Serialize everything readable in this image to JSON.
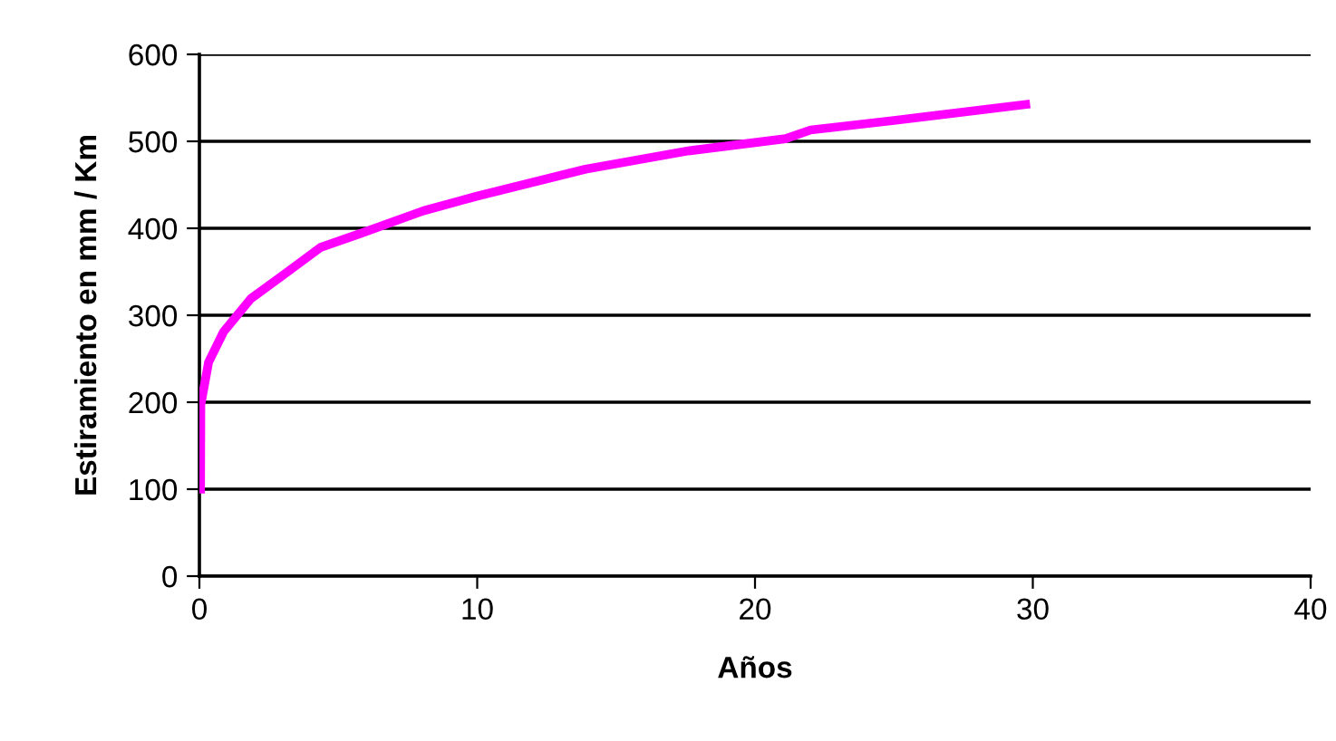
{
  "chart_data": {
    "type": "line",
    "xlabel": "Años",
    "ylabel": "Estiramiento en mm / Km",
    "series": [
      {
        "color": "#ff00ff",
        "x": [
          0.04,
          0.05,
          0.33,
          0.87,
          1.85,
          3.05,
          4.36,
          5.88,
          8.06,
          10.0,
          13.9,
          17.6,
          21.1,
          22.0,
          25.0,
          29.9
        ],
        "values": [
          95,
          197,
          246,
          281,
          319,
          347,
          378,
          395,
          420,
          437,
          468,
          489,
          503,
          513,
          524,
          543
        ]
      }
    ],
    "xlim": [
      0,
      40
    ],
    "xticks": [
      0,
      10,
      20,
      30,
      40
    ],
    "ylim": [
      0,
      600
    ],
    "yticks": [
      0,
      100,
      200,
      300,
      400,
      500,
      600
    ],
    "grid": "y",
    "marker": "none",
    "line_style": "solid",
    "legend": false
  }
}
